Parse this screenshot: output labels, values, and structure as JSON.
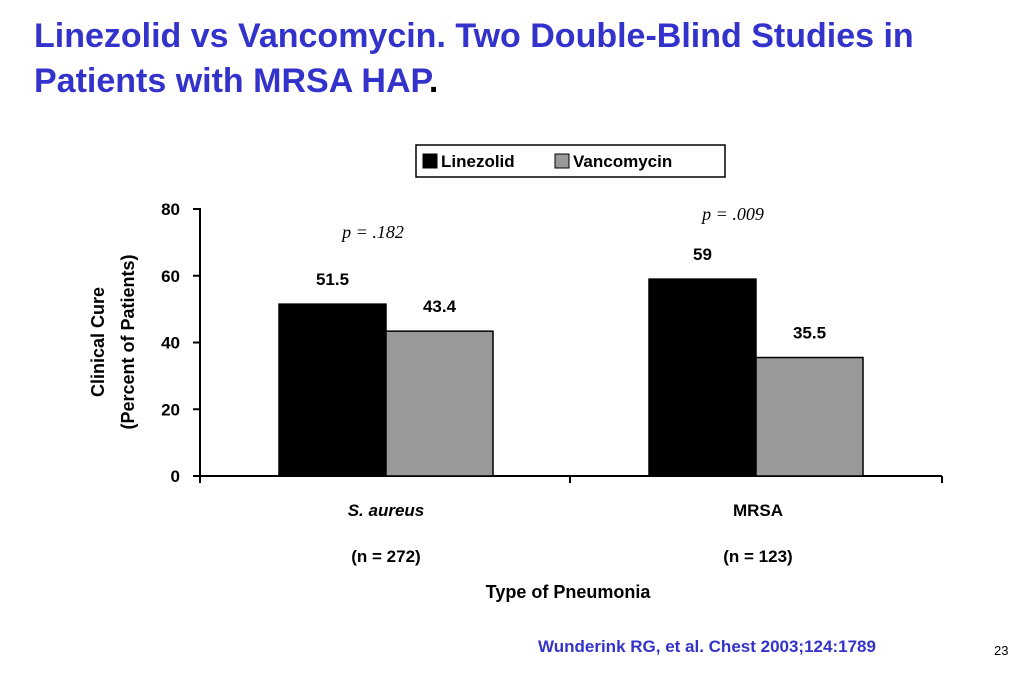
{
  "slide": {
    "title_main": "Linezolid vs Vancomycin. Two Double-Blind Studies in Patients with MRSA HAP",
    "title_period": ".",
    "citation": "Wunderink RG, et al. Chest 2003;124:1789",
    "slide_number": "23"
  },
  "chart_data": {
    "type": "bar",
    "title": "",
    "xlabel": "Type of Pneumonia",
    "ylabel": [
      "Clinical Cure",
      "(Percent of Patients)"
    ],
    "categories": [
      "S. aureus",
      "MRSA"
    ],
    "category_notes": [
      "(n = 272)",
      "(n = 123)"
    ],
    "category_italic": [
      true,
      false
    ],
    "series": [
      {
        "name": "Linezolid",
        "values": [
          51.5,
          59
        ],
        "color": "#000000"
      },
      {
        "name": "Vancomycin",
        "values": [
          43.4,
          35.5
        ],
        "color": "#999999"
      }
    ],
    "value_labels": [
      [
        "51.5",
        "59"
      ],
      [
        "43.4",
        "35.5"
      ]
    ],
    "annotations": [
      "p = .182",
      "p = .009"
    ],
    "ylim": [
      0,
      80
    ],
    "yticks": [
      0,
      20,
      40,
      60,
      80
    ],
    "legend_position": "top-right",
    "grid": false
  }
}
